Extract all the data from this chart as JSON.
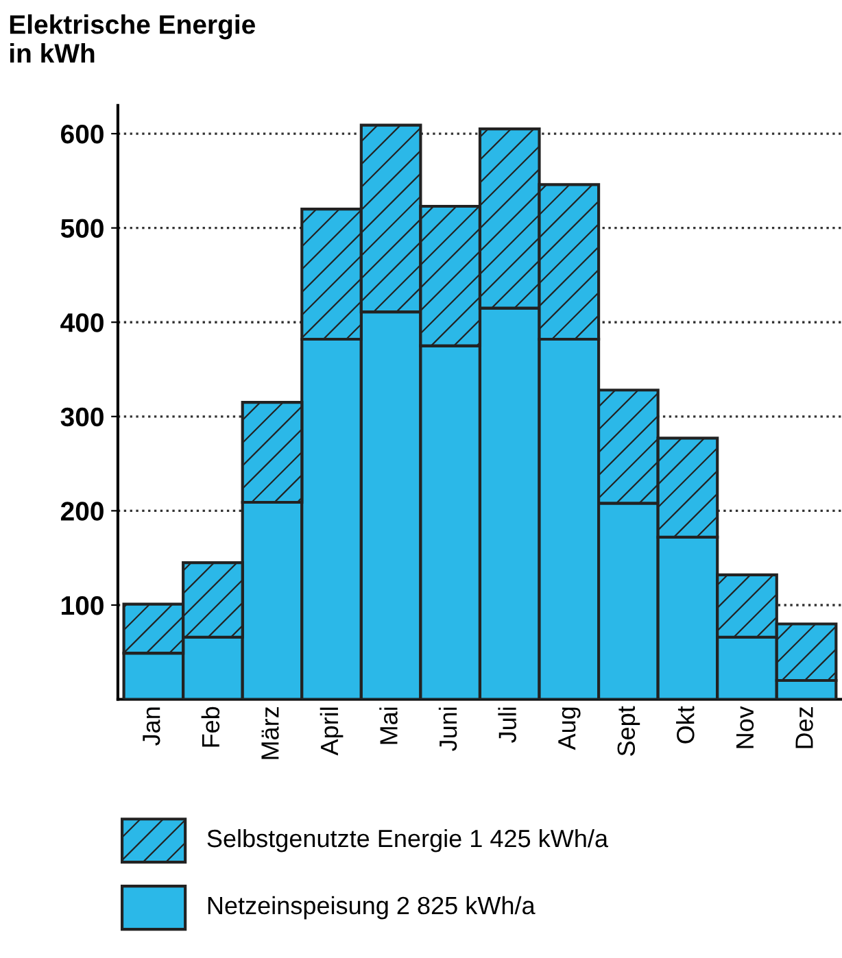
{
  "chart_data": {
    "type": "bar",
    "stacked": true,
    "ylabel": "Elektrische Energie\nin kWh",
    "categories": [
      "Jan",
      "Feb",
      "März",
      "April",
      "Mai",
      "Juni",
      "Juli",
      "Aug",
      "Sept",
      "Okt",
      "Nov",
      "Dez"
    ],
    "series": [
      {
        "name": "Netzeinspeisung 2 825 kWh/a",
        "color": "#2bb8e8",
        "values": [
          49,
          66,
          209,
          382,
          411,
          375,
          415,
          382,
          208,
          172,
          66,
          20
        ]
      },
      {
        "name": "Selbstgenutzte Energie 1 425 kWh/a",
        "color": "#2bb8e8",
        "values": [
          52,
          79,
          106,
          138,
          198,
          148,
          190,
          164,
          120,
          105,
          66,
          60
        ]
      }
    ],
    "ylim": [
      0,
      630
    ],
    "yticks": [
      100,
      200,
      300,
      400,
      500,
      600
    ],
    "grid": "y",
    "legend": "bottom"
  }
}
